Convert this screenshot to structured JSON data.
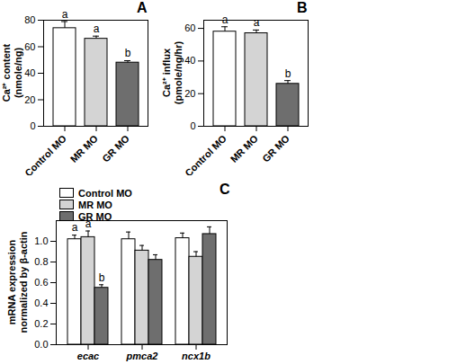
{
  "chart_data": [
    {
      "type": "bar",
      "title": "A",
      "y_label": "Ca²⁺ content\n(nmole/ng)",
      "categories": [
        "Control MO",
        "MR MO",
        "GR MO"
      ],
      "values": [
        74,
        66,
        48
      ],
      "errors": [
        5,
        2,
        1.5
      ],
      "annotations": [
        "a",
        "a",
        "b"
      ],
      "colors": [
        "#ffffff",
        "#d4d4d4",
        "#6e6e6e"
      ],
      "ylim": [
        0,
        80
      ],
      "yticks": [
        0,
        20,
        40,
        60,
        80
      ],
      "grid": false
    },
    {
      "type": "bar",
      "title": "B",
      "y_label": "Ca²⁺ influx\n(pmole/ng/hr)",
      "categories": [
        "Control MO",
        "MR MO",
        "GR MO"
      ],
      "values": [
        58,
        57,
        26
      ],
      "errors": [
        3,
        2,
        2
      ],
      "annotations": [
        "a",
        "a",
        "b"
      ],
      "colors": [
        "#ffffff",
        "#d4d4d4",
        "#6e6e6e"
      ],
      "ylim": [
        0,
        65
      ],
      "yticks": [
        0,
        20,
        40,
        60
      ],
      "grid": false
    },
    {
      "type": "bar",
      "title": "C",
      "y_label": "mRNA expression\nnormalized by β-actin",
      "categories": [
        "ecac",
        "pmca2",
        "ncx1b"
      ],
      "series": [
        {
          "name": "Control MO",
          "color": "#ffffff",
          "values": [
            1.02,
            1.02,
            1.03
          ],
          "errors": [
            0.04,
            0.07,
            0.05
          ],
          "annotations": [
            "a",
            null,
            null
          ]
        },
        {
          "name": "MR MO",
          "color": "#d4d4d4",
          "values": [
            1.04,
            0.91,
            0.85
          ],
          "errors": [
            0.06,
            0.05,
            0.05
          ],
          "annotations": [
            "a",
            null,
            null
          ]
        },
        {
          "name": "GR MO",
          "color": "#6e6e6e",
          "values": [
            0.55,
            0.82,
            1.07
          ],
          "errors": [
            0.03,
            0.05,
            0.07
          ],
          "annotations": [
            "b",
            null,
            null
          ]
        }
      ],
      "ylim": [
        0,
        1.2
      ],
      "yticks": [
        {
          "value": 0,
          "label": "0.0"
        },
        0.2,
        0.4,
        0.6,
        0.8,
        {
          "value": 1,
          "label": "1.0"
        }
      ],
      "legend": "top-left",
      "grid": false
    }
  ]
}
